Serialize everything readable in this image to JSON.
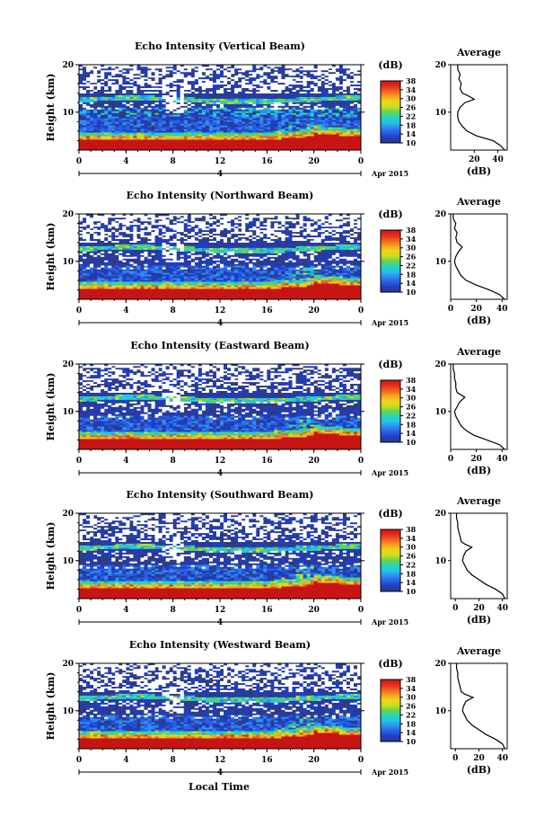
{
  "chart_data": {
    "type": "heatmap",
    "x_label": "Local Time",
    "date_label": "Apr 2015",
    "date_day": "4",
    "time_ticks": [
      "0",
      "4",
      "8",
      "12",
      "16",
      "20",
      "0"
    ],
    "time_range_hours": [
      0,
      24
    ],
    "height_label": "Height (km)",
    "height_range_km": [
      2,
      20
    ],
    "height_ticks": [
      "10",
      "20"
    ],
    "colorbar": {
      "unit": "(dB)",
      "ticks": [
        "10",
        "14",
        "18",
        "22",
        "26",
        "30",
        "34",
        "38"
      ],
      "range": [
        10,
        38
      ],
      "colors": [
        "#2f3a8a",
        "#1f3fbf",
        "#2a5ee8",
        "#2e8ef0",
        "#22c4e8",
        "#24d7b8",
        "#6ad24a",
        "#c8e020",
        "#f2d21a",
        "#f7a01c",
        "#f06020",
        "#e82a20",
        "#c81414"
      ]
    },
    "avg_unit": "(dB)",
    "panels": [
      {
        "title": "Echo Intensity (Vertical Beam)",
        "avg_title": "Average",
        "avg_xlim": [
          0,
          48
        ],
        "avg_xticks": [
          "20",
          "40"
        ],
        "avg_profile": [
          [
            2,
            46
          ],
          [
            3,
            42
          ],
          [
            4,
            36
          ],
          [
            5,
            22
          ],
          [
            6,
            14
          ],
          [
            7,
            10
          ],
          [
            8,
            7
          ],
          [
            9,
            6
          ],
          [
            10,
            6
          ],
          [
            11,
            8
          ],
          [
            12,
            12
          ],
          [
            12.7,
            20
          ],
          [
            13.3,
            16
          ],
          [
            14,
            10
          ],
          [
            15,
            8
          ],
          [
            16,
            9
          ],
          [
            17,
            7
          ],
          [
            18,
            8
          ],
          [
            19,
            6
          ],
          [
            20,
            6
          ]
        ]
      },
      {
        "title": "Echo Intensity (Northward Beam)",
        "avg_title": "Average",
        "avg_xlim": [
          0,
          44
        ],
        "avg_xticks": [
          "0",
          "20",
          "40"
        ],
        "avg_profile": [
          [
            2,
            42
          ],
          [
            3,
            38
          ],
          [
            4,
            30
          ],
          [
            5,
            20
          ],
          [
            6,
            12
          ],
          [
            7,
            8
          ],
          [
            8,
            6
          ],
          [
            9,
            4
          ],
          [
            10,
            3
          ],
          [
            11,
            4
          ],
          [
            12,
            6
          ],
          [
            13,
            9
          ],
          [
            14,
            5
          ],
          [
            15,
            4
          ],
          [
            16,
            5
          ],
          [
            17,
            3
          ],
          [
            18,
            4
          ],
          [
            19,
            2
          ],
          [
            20,
            2
          ]
        ]
      },
      {
        "title": "Echo Intensity (Eastward Beam)",
        "avg_title": "Average",
        "avg_xlim": [
          0,
          44
        ],
        "avg_xticks": [
          "0",
          "20",
          "40"
        ],
        "avg_profile": [
          [
            2,
            42
          ],
          [
            3,
            38
          ],
          [
            4,
            28
          ],
          [
            5,
            18
          ],
          [
            6,
            12
          ],
          [
            7,
            8
          ],
          [
            8,
            6
          ],
          [
            9,
            4
          ],
          [
            10,
            3
          ],
          [
            11,
            5
          ],
          [
            12,
            7
          ],
          [
            13,
            11
          ],
          [
            14,
            5
          ],
          [
            15,
            4
          ],
          [
            16,
            4
          ],
          [
            17,
            3
          ],
          [
            18,
            3
          ],
          [
            19,
            2
          ],
          [
            20,
            2
          ]
        ]
      },
      {
        "title": "Echo Intensity (Southward Beam)",
        "avg_title": "Average",
        "avg_xlim": [
          -4,
          44
        ],
        "avg_xticks": [
          "0",
          "20",
          "40"
        ],
        "avg_profile": [
          [
            2,
            42
          ],
          [
            3,
            40
          ],
          [
            4,
            34
          ],
          [
            5,
            26
          ],
          [
            6,
            20
          ],
          [
            7,
            14
          ],
          [
            8,
            10
          ],
          [
            9,
            8
          ],
          [
            10,
            6
          ],
          [
            11,
            7
          ],
          [
            12,
            9
          ],
          [
            12.8,
            14
          ],
          [
            13.5,
            8
          ],
          [
            14,
            5
          ],
          [
            15,
            4
          ],
          [
            16,
            3
          ],
          [
            17,
            2
          ],
          [
            18,
            2
          ],
          [
            19,
            1
          ],
          [
            20,
            1
          ]
        ]
      },
      {
        "title": "Echo Intensity (Westward Beam)",
        "avg_title": "Average",
        "avg_xlim": [
          -4,
          44
        ],
        "avg_xticks": [
          "0",
          "20",
          "40"
        ],
        "avg_profile": [
          [
            2,
            42
          ],
          [
            3,
            40
          ],
          [
            4,
            34
          ],
          [
            5,
            26
          ],
          [
            6,
            20
          ],
          [
            7,
            14
          ],
          [
            8,
            10
          ],
          [
            9,
            8
          ],
          [
            10,
            6
          ],
          [
            11,
            7
          ],
          [
            12,
            9
          ],
          [
            12.8,
            15
          ],
          [
            13.5,
            8
          ],
          [
            14,
            5
          ],
          [
            15,
            4
          ],
          [
            16,
            3
          ],
          [
            17,
            2
          ],
          [
            18,
            2
          ],
          [
            19,
            1
          ],
          [
            20,
            1
          ]
        ]
      }
    ]
  }
}
